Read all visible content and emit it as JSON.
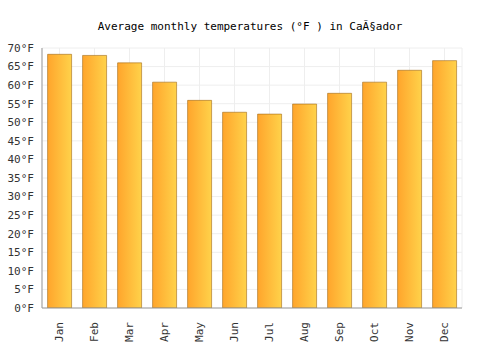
{
  "chart_data": {
    "type": "bar",
    "title": "Average monthly temperatures (°F ) in CaÃ§ador",
    "categories": [
      "Jan",
      "Feb",
      "Mar",
      "Apr",
      "May",
      "Jun",
      "Jul",
      "Aug",
      "Sep",
      "Oct",
      "Nov",
      "Dec"
    ],
    "values": [
      68.3,
      68.0,
      66.0,
      60.8,
      55.9,
      52.7,
      52.2,
      54.9,
      57.8,
      60.8,
      64.0,
      66.6
    ],
    "color": "#ffa52c",
    "ylim": [
      0,
      70
    ],
    "yticks": [
      {
        "value": 0,
        "label": "0°F"
      },
      {
        "value": 5,
        "label": "5°F"
      },
      {
        "value": 10,
        "label": "10°F"
      },
      {
        "value": 15,
        "label": "15°F"
      },
      {
        "value": 20,
        "label": "20°F"
      },
      {
        "value": 25,
        "label": "25°F"
      },
      {
        "value": 30,
        "label": "30°F"
      },
      {
        "value": 35,
        "label": "35°F"
      },
      {
        "value": 40,
        "label": "40°F"
      },
      {
        "value": 45,
        "label": "45°F"
      },
      {
        "value": 50,
        "label": "50°F"
      },
      {
        "value": 55,
        "label": "55°F"
      },
      {
        "value": 60,
        "label": "60°F"
      },
      {
        "value": 65,
        "label": "65°F"
      },
      {
        "value": 70,
        "label": "70°F"
      }
    ],
    "grid": true
  }
}
